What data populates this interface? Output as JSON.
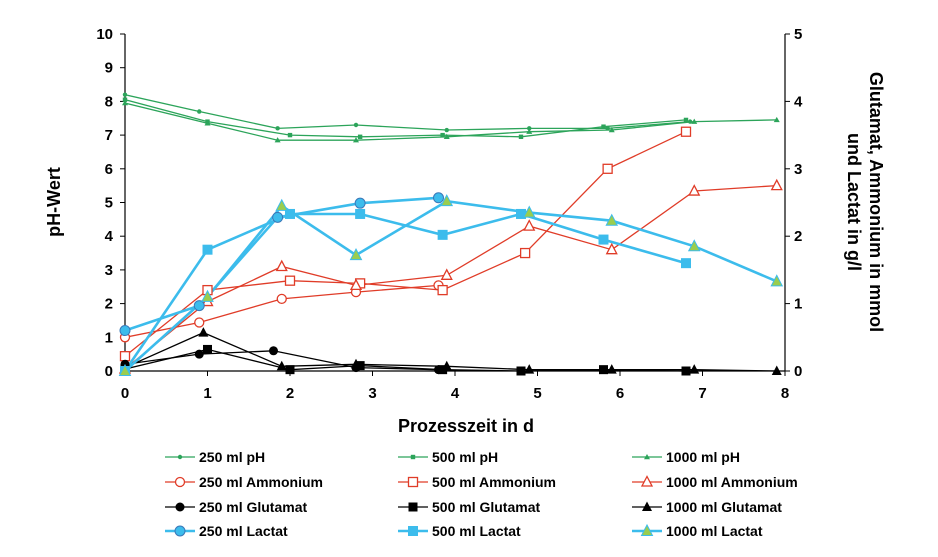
{
  "chart_data": {
    "type": "line",
    "xlabel": "Prozesszeit in d",
    "ylabel": "pH-Wert",
    "y2label": "Glutamat, Ammonium in mmol und Lactat in g/l",
    "xlim": [
      0,
      8
    ],
    "ylim": [
      0,
      10
    ],
    "y2lim": [
      0,
      5
    ],
    "xticks": [
      "0",
      "1",
      "2",
      "3",
      "4",
      "5",
      "6",
      "7",
      "8"
    ],
    "yticks": [
      "0",
      "1",
      "2",
      "3",
      "4",
      "5",
      "6",
      "7",
      "8",
      "9",
      "10"
    ],
    "y2ticks": [
      "0",
      "1",
      "2",
      "3",
      "4",
      "5"
    ],
    "grid": false,
    "legend_position": "bottom",
    "colors": {
      "green": "#2ca45a",
      "red": "#e03c28",
      "black": "#000000",
      "blue": "#3cbcec",
      "triangle_fill": "#9acd4f"
    },
    "series": [
      {
        "name": "250 ml pH",
        "axis": "left",
        "color": "#2ca45a",
        "marker": "dot",
        "x": [
          0,
          0.9,
          1.85,
          2.8,
          3.9,
          4.9,
          5.85,
          6.85
        ],
        "y": [
          8.2,
          7.7,
          7.2,
          7.3,
          7.15,
          7.2,
          7.2,
          7.4
        ]
      },
      {
        "name": "500 ml pH",
        "axis": "left",
        "color": "#2ca45a",
        "marker": "small-square",
        "x": [
          0,
          1,
          2,
          2.85,
          3.85,
          4.8,
          5.8,
          6.8
        ],
        "y": [
          8.05,
          7.4,
          7.0,
          6.95,
          7.0,
          6.95,
          7.25,
          7.45
        ]
      },
      {
        "name": "1000 ml pH",
        "axis": "left",
        "color": "#2ca45a",
        "marker": "small-triangle",
        "x": [
          0,
          1,
          1.85,
          2.8,
          3.9,
          4.9,
          5.9,
          6.9,
          7.9
        ],
        "y": [
          7.95,
          7.35,
          6.85,
          6.85,
          6.95,
          7.1,
          7.15,
          7.4,
          7.45
        ]
      },
      {
        "name": "250 ml Ammonium",
        "axis": "right",
        "color": "#e03c28",
        "marker": "open-circle",
        "x": [
          0,
          0.9,
          1.9,
          2.8,
          3.8
        ],
        "y": [
          0.5,
          0.72,
          1.07,
          1.17,
          1.27
        ]
      },
      {
        "name": "500 ml Ammonium",
        "axis": "right",
        "color": "#e03c28",
        "marker": "open-square",
        "x": [
          0,
          1,
          2,
          2.85,
          3.85,
          4.85,
          5.85,
          6.8
        ],
        "y": [
          0.22,
          1.2,
          1.34,
          1.3,
          1.2,
          1.75,
          3.0,
          3.55
        ]
      },
      {
        "name": "1000 ml Ammonium",
        "axis": "right",
        "color": "#e03c28",
        "marker": "open-triangle",
        "x": [
          0,
          1,
          1.9,
          2.8,
          3.9,
          4.9,
          5.9,
          6.9,
          7.9
        ],
        "y": [
          0.03,
          1.03,
          1.55,
          1.27,
          1.42,
          2.15,
          1.8,
          2.67,
          2.75
        ]
      },
      {
        "name": "250 ml Glutamat",
        "axis": "right",
        "color": "#000000",
        "marker": "filled-circle",
        "x": [
          0,
          0.9,
          1.8,
          2.8,
          3.8
        ],
        "y": [
          0.1,
          0.25,
          0.3,
          0.05,
          0.02
        ]
      },
      {
        "name": "500 ml Glutamat",
        "axis": "right",
        "color": "#000000",
        "marker": "filled-square",
        "x": [
          0,
          1,
          2,
          2.85,
          3.85,
          4.8,
          5.8,
          6.8
        ],
        "y": [
          0.03,
          0.32,
          0.02,
          0.08,
          0.02,
          0.0,
          0.02,
          0.0
        ]
      },
      {
        "name": "1000 ml Glutamat",
        "axis": "right",
        "color": "#000000",
        "marker": "filled-triangle",
        "x": [
          0,
          0.95,
          1.9,
          2.8,
          3.9,
          4.9,
          5.9,
          6.9,
          7.9
        ],
        "y": [
          0.05,
          0.57,
          0.07,
          0.1,
          0.07,
          0.02,
          0.02,
          0.02,
          0.0
        ]
      },
      {
        "name": "250 ml Lactat",
        "axis": "right",
        "color": "#3cbcec",
        "marker": "circle",
        "x": [
          0,
          0.9,
          1.85,
          2.85,
          3.8
        ],
        "y": [
          0.6,
          0.97,
          2.28,
          2.49,
          2.57
        ]
      },
      {
        "name": "500 ml Lactat",
        "axis": "right",
        "color": "#3cbcec",
        "marker": "square",
        "x": [
          0,
          1,
          2,
          2.85,
          3.85,
          4.8,
          5.8,
          6.8
        ],
        "y": [
          0.0,
          1.8,
          2.33,
          2.33,
          2.02,
          2.33,
          1.95,
          1.6
        ]
      },
      {
        "name": "1000 ml Lactat",
        "axis": "right",
        "color": "#3cbcec",
        "marker": "triangle",
        "x": [
          0,
          1,
          1.9,
          2.8,
          3.9,
          4.9,
          5.9,
          6.9,
          7.9
        ],
        "y": [
          0.0,
          1.1,
          2.45,
          1.72,
          2.52,
          2.35,
          2.23,
          1.85,
          1.33
        ]
      }
    ]
  }
}
